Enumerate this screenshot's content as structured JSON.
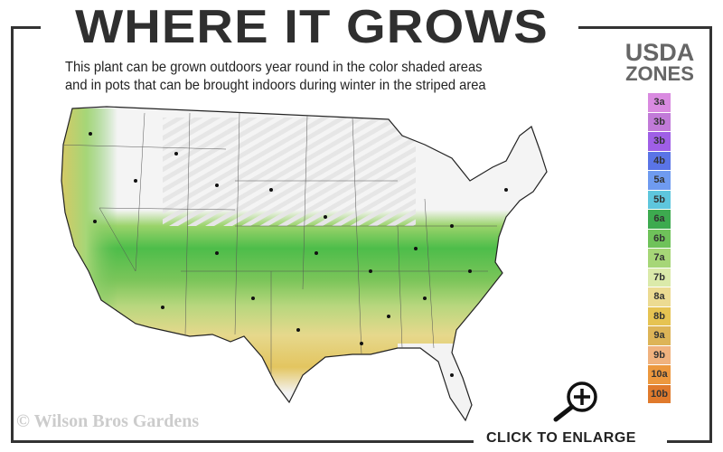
{
  "header": {
    "title": "WHERE IT GROWS",
    "subtitle_line1": "This plant can be grown outdoors year round in the color shaded areas",
    "subtitle_line2": "and in pots that can be brought indoors during winter in the striped area"
  },
  "legend": {
    "title_line1": "USDA",
    "title_line2": "ZONES",
    "zones": [
      {
        "label": "3a",
        "color": "#d98ae0"
      },
      {
        "label": "3b",
        "color": "#c17ad8"
      },
      {
        "label": "3b",
        "color": "#9f5fe6"
      },
      {
        "label": "4b",
        "color": "#5a74e6"
      },
      {
        "label": "5a",
        "color": "#6f9bf0"
      },
      {
        "label": "5b",
        "color": "#5ec6dd"
      },
      {
        "label": "6a",
        "color": "#3daa4f"
      },
      {
        "label": "6b",
        "color": "#6fc25a"
      },
      {
        "label": "7a",
        "color": "#a6d677"
      },
      {
        "label": "7b",
        "color": "#dbeaaa"
      },
      {
        "label": "8a",
        "color": "#ecdb92"
      },
      {
        "label": "8b",
        "color": "#e6c352"
      },
      {
        "label": "9a",
        "color": "#ddb457"
      },
      {
        "label": "9b",
        "color": "#f0b27e"
      },
      {
        "label": "10a",
        "color": "#ec983e"
      },
      {
        "label": "10b",
        "color": "#e07a2c"
      }
    ]
  },
  "footer": {
    "copyright": "© Wilson Bros Gardens",
    "enlarge_label": "CLICK TO ENLARGE"
  },
  "icons": {
    "enlarge": "magnifier-plus-icon"
  }
}
